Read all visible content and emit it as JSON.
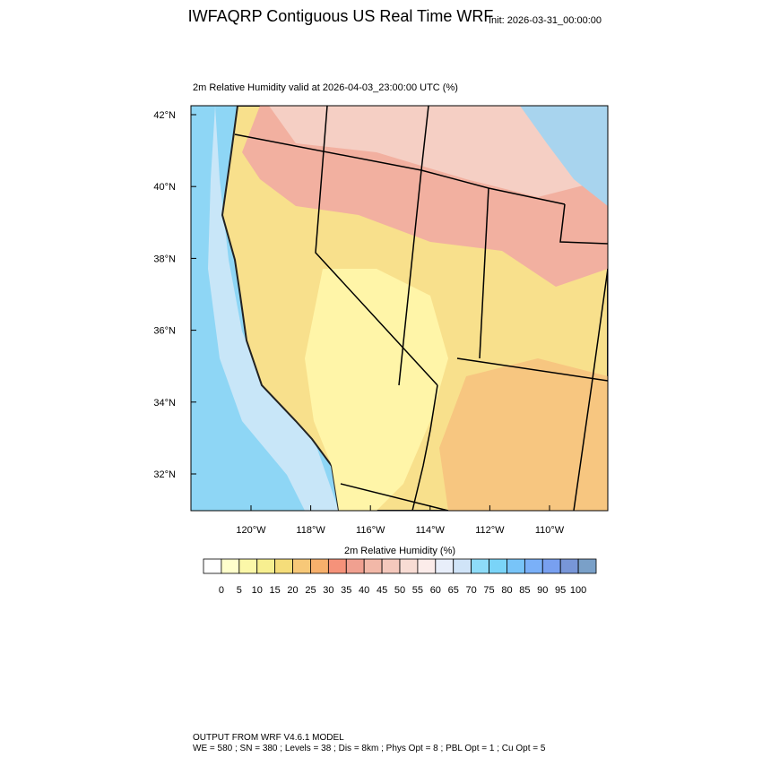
{
  "header": {
    "title": "IWFAQRP Contiguous US Real Time WRF",
    "init": "Init: 2026-03-31_00:00:00"
  },
  "map": {
    "subtitle": "2m Relative Humidity valid at 2026-04-03_23:00:00 UTC   (%)",
    "lat_labels": [
      "42°N",
      "40°N",
      "38°N",
      "36°N",
      "34°N",
      "32°N"
    ],
    "lon_labels": [
      "120°W",
      "118°W",
      "116°W",
      "114°W",
      "112°W",
      "110°W"
    ]
  },
  "colorbar": {
    "title": "2m Relative Humidity  (%)",
    "levels": [
      0,
      5,
      10,
      15,
      20,
      25,
      30,
      35,
      40,
      45,
      50,
      55,
      60,
      65,
      70,
      75,
      80,
      85,
      90,
      95,
      100
    ],
    "colors": [
      "#ffffff",
      "#ffffcc",
      "#fbf7a8",
      "#f7ef90",
      "#f5dd7a",
      "#f7c878",
      "#f7b06c",
      "#f5927a",
      "#f0a090",
      "#f2b8a8",
      "#f4c8bc",
      "#f8dcd4",
      "#fcecea",
      "#e8eefa",
      "#d0e4f8",
      "#8edcf8",
      "#7ad4f8",
      "#78c4f8",
      "#7ab0f8",
      "#78a0f0",
      "#7896d8",
      "#7aa0c8"
    ]
  },
  "footer": {
    "line1": "OUTPUT FROM WRF V4.6.1 MODEL",
    "line2": "WE = 580 ; SN = 380 ; Levels = 38 ; Dis = 8km ; Phys Opt = 8 ; PBL Opt = 1 ; Cu Opt = 5"
  }
}
